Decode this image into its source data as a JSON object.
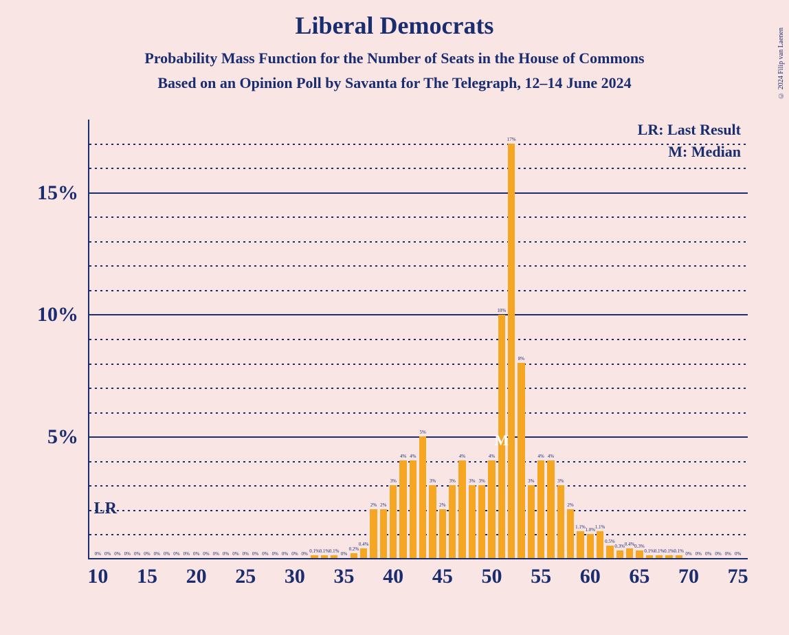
{
  "title": "Liberal Democrats",
  "subtitle1": "Probability Mass Function for the Number of Seats in the House of Commons",
  "subtitle2": "Based on an Opinion Poll by Savanta for The Telegraph, 12–14 June 2024",
  "copyright": "© 2024 Filip van Laenen",
  "legend_lr": "LR: Last Result",
  "legend_m": "M: Median",
  "lr_label": "LR",
  "m_label": "M",
  "lr_seat": 11,
  "median_seat": 51,
  "chart": {
    "type": "bar",
    "background_color": "#fae5e5",
    "bar_color": "#f5a623",
    "text_color": "#1a2d6e",
    "grid_color": "#1a2d6e",
    "x_min": 9,
    "x_max": 76,
    "x_tick_start": 10,
    "x_tick_step": 5,
    "y_min": 0,
    "y_max": 18,
    "y_major_ticks": [
      5,
      10,
      15
    ],
    "y_minor_step": 1,
    "bar_width_ratio": 0.72,
    "bars": [
      {
        "x": 10,
        "v": 0,
        "l": "0%"
      },
      {
        "x": 11,
        "v": 0,
        "l": "0%"
      },
      {
        "x": 12,
        "v": 0,
        "l": "0%"
      },
      {
        "x": 13,
        "v": 0,
        "l": "0%"
      },
      {
        "x": 14,
        "v": 0,
        "l": "0%"
      },
      {
        "x": 15,
        "v": 0,
        "l": "0%"
      },
      {
        "x": 16,
        "v": 0,
        "l": "0%"
      },
      {
        "x": 17,
        "v": 0,
        "l": "0%"
      },
      {
        "x": 18,
        "v": 0,
        "l": "0%"
      },
      {
        "x": 19,
        "v": 0,
        "l": "0%"
      },
      {
        "x": 20,
        "v": 0,
        "l": "0%"
      },
      {
        "x": 21,
        "v": 0,
        "l": "0%"
      },
      {
        "x": 22,
        "v": 0,
        "l": "0%"
      },
      {
        "x": 23,
        "v": 0,
        "l": "0%"
      },
      {
        "x": 24,
        "v": 0,
        "l": "0%"
      },
      {
        "x": 25,
        "v": 0,
        "l": "0%"
      },
      {
        "x": 26,
        "v": 0,
        "l": "0%"
      },
      {
        "x": 27,
        "v": 0,
        "l": "0%"
      },
      {
        "x": 28,
        "v": 0,
        "l": "0%"
      },
      {
        "x": 29,
        "v": 0,
        "l": "0%"
      },
      {
        "x": 30,
        "v": 0,
        "l": "0%"
      },
      {
        "x": 31,
        "v": 0,
        "l": "0%"
      },
      {
        "x": 32,
        "v": 0.1,
        "l": "0.1%"
      },
      {
        "x": 33,
        "v": 0.1,
        "l": "0.1%"
      },
      {
        "x": 34,
        "v": 0.1,
        "l": "0.1%"
      },
      {
        "x": 35,
        "v": 0,
        "l": "0%"
      },
      {
        "x": 36,
        "v": 0.2,
        "l": "0.2%"
      },
      {
        "x": 37,
        "v": 0.4,
        "l": "0.4%"
      },
      {
        "x": 38,
        "v": 2,
        "l": "2%"
      },
      {
        "x": 39,
        "v": 2,
        "l": "2%"
      },
      {
        "x": 40,
        "v": 3,
        "l": "3%"
      },
      {
        "x": 41,
        "v": 4,
        "l": "4%"
      },
      {
        "x": 42,
        "v": 4,
        "l": "4%"
      },
      {
        "x": 43,
        "v": 5,
        "l": "5%"
      },
      {
        "x": 44,
        "v": 3,
        "l": "3%"
      },
      {
        "x": 45,
        "v": 2,
        "l": "2%"
      },
      {
        "x": 46,
        "v": 3,
        "l": "3%"
      },
      {
        "x": 47,
        "v": 4,
        "l": "4%"
      },
      {
        "x": 48,
        "v": 3,
        "l": "3%"
      },
      {
        "x": 49,
        "v": 3,
        "l": "3%"
      },
      {
        "x": 50,
        "v": 4,
        "l": "4%"
      },
      {
        "x": 51,
        "v": 10,
        "l": "10%"
      },
      {
        "x": 52,
        "v": 17,
        "l": "17%"
      },
      {
        "x": 53,
        "v": 8,
        "l": "8%"
      },
      {
        "x": 54,
        "v": 3,
        "l": "3%"
      },
      {
        "x": 55,
        "v": 4,
        "l": "4%"
      },
      {
        "x": 56,
        "v": 4,
        "l": "4%"
      },
      {
        "x": 57,
        "v": 3,
        "l": "3%"
      },
      {
        "x": 58,
        "v": 2,
        "l": "2%"
      },
      {
        "x": 59,
        "v": 1.1,
        "l": "1.1%"
      },
      {
        "x": 60,
        "v": 1.0,
        "l": "1.0%"
      },
      {
        "x": 61,
        "v": 1.1,
        "l": "1.1%"
      },
      {
        "x": 62,
        "v": 0.5,
        "l": "0.5%"
      },
      {
        "x": 63,
        "v": 0.3,
        "l": "0.3%"
      },
      {
        "x": 64,
        "v": 0.4,
        "l": "0.4%"
      },
      {
        "x": 65,
        "v": 0.3,
        "l": "0.3%"
      },
      {
        "x": 66,
        "v": 0.1,
        "l": "0.1%"
      },
      {
        "x": 67,
        "v": 0.1,
        "l": "0.1%"
      },
      {
        "x": 68,
        "v": 0.1,
        "l": "0.1%"
      },
      {
        "x": 69,
        "v": 0.1,
        "l": "0.1%"
      },
      {
        "x": 70,
        "v": 0,
        "l": "0%"
      },
      {
        "x": 71,
        "v": 0,
        "l": "0%"
      },
      {
        "x": 72,
        "v": 0,
        "l": "0%"
      },
      {
        "x": 73,
        "v": 0,
        "l": "0%"
      },
      {
        "x": 74,
        "v": 0,
        "l": "0%"
      },
      {
        "x": 75,
        "v": 0,
        "l": "0%"
      }
    ]
  }
}
